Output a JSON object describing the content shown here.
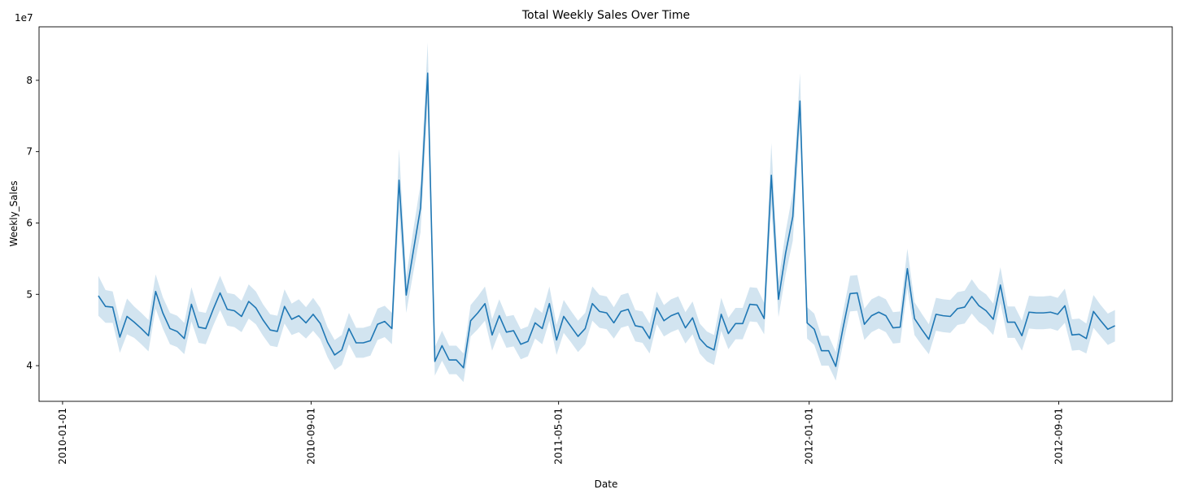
{
  "chart_data": {
    "type": "line",
    "title": "Total Weekly Sales Over Time",
    "xlabel": "Date",
    "ylabel": "Weekly_Sales",
    "y_scale_label": "1e7",
    "xlim": [
      "2009-12-09",
      "2012-12-21"
    ],
    "ylim": [
      3.5,
      8.75
    ],
    "y_ticks": [
      4,
      5,
      6,
      7,
      8
    ],
    "x_ticks": [
      "2010-01-01",
      "2010-09-01",
      "2011-05-01",
      "2012-01-01",
      "2012-09-01"
    ],
    "grid": false,
    "colors": {
      "line": "#1f77b4",
      "band": "#1f77b4"
    },
    "series": [
      {
        "x": [
          "2010-02-05",
          "2010-02-12",
          "2010-02-19",
          "2010-02-26",
          "2010-03-05",
          "2010-03-12",
          "2010-03-19",
          "2010-03-26",
          "2010-04-02",
          "2010-04-09",
          "2010-04-16",
          "2010-04-23",
          "2010-04-30",
          "2010-05-07",
          "2010-05-14",
          "2010-05-21",
          "2010-05-28",
          "2010-06-04",
          "2010-06-11",
          "2010-06-18",
          "2010-06-25",
          "2010-07-02",
          "2010-07-09",
          "2010-07-16",
          "2010-07-23",
          "2010-07-30",
          "2010-08-06",
          "2010-08-13",
          "2010-08-20",
          "2010-08-27",
          "2010-09-03",
          "2010-09-10",
          "2010-09-17",
          "2010-09-24",
          "2010-10-01",
          "2010-10-08",
          "2010-10-15",
          "2010-10-22",
          "2010-10-29",
          "2010-11-05",
          "2010-11-12",
          "2010-11-19",
          "2010-11-26",
          "2010-12-03",
          "2010-12-10",
          "2010-12-17",
          "2010-12-24",
          "2010-12-31",
          "2011-01-07",
          "2011-01-14",
          "2011-01-21",
          "2011-01-28",
          "2011-02-04",
          "2011-02-11",
          "2011-02-18",
          "2011-02-25",
          "2011-03-04",
          "2011-03-11",
          "2011-03-18",
          "2011-03-25",
          "2011-04-01",
          "2011-04-08",
          "2011-04-15",
          "2011-04-22",
          "2011-04-29",
          "2011-05-06",
          "2011-05-13",
          "2011-05-20",
          "2011-05-27",
          "2011-06-03",
          "2011-06-10",
          "2011-06-17",
          "2011-06-24",
          "2011-07-01",
          "2011-07-08",
          "2011-07-15",
          "2011-07-22",
          "2011-07-29",
          "2011-08-05",
          "2011-08-12",
          "2011-08-19",
          "2011-08-26",
          "2011-09-02",
          "2011-09-09",
          "2011-09-16",
          "2011-09-23",
          "2011-09-30",
          "2011-10-07",
          "2011-10-14",
          "2011-10-21",
          "2011-10-28",
          "2011-11-04",
          "2011-11-11",
          "2011-11-18",
          "2011-11-25",
          "2011-12-02",
          "2011-12-09",
          "2011-12-16",
          "2011-12-23",
          "2011-12-30",
          "2012-01-06",
          "2012-01-13",
          "2012-01-20",
          "2012-01-27",
          "2012-02-03",
          "2012-02-10",
          "2012-02-17",
          "2012-02-24",
          "2012-03-02",
          "2012-03-09",
          "2012-03-16",
          "2012-03-23",
          "2012-03-30",
          "2012-04-06",
          "2012-04-13",
          "2012-04-20",
          "2012-04-27",
          "2012-05-04",
          "2012-05-11",
          "2012-05-18",
          "2012-05-25",
          "2012-06-01",
          "2012-06-08",
          "2012-06-15",
          "2012-06-22",
          "2012-06-29",
          "2012-07-06",
          "2012-07-13",
          "2012-07-20",
          "2012-07-27",
          "2012-08-03",
          "2012-08-10",
          "2012-08-17",
          "2012-08-24",
          "2012-08-31",
          "2012-09-07",
          "2012-09-14",
          "2012-09-21",
          "2012-09-28",
          "2012-10-05",
          "2012-10-12",
          "2012-10-19",
          "2012-10-26"
        ],
        "values": [
          4.98,
          4.83,
          4.82,
          4.4,
          4.69,
          4.61,
          4.52,
          4.42,
          5.04,
          4.74,
          4.52,
          4.48,
          4.38,
          4.86,
          4.54,
          4.52,
          4.78,
          5.02,
          4.79,
          4.77,
          4.69,
          4.9,
          4.81,
          4.64,
          4.5,
          4.48,
          4.83,
          4.65,
          4.7,
          4.6,
          4.72,
          4.59,
          4.33,
          4.15,
          4.22,
          4.52,
          4.32,
          4.32,
          4.35,
          4.58,
          4.62,
          4.52,
          6.6,
          4.99,
          5.61,
          6.21,
          8.1,
          4.06,
          4.28,
          4.08,
          4.08,
          3.97,
          4.63,
          4.74,
          4.87,
          4.43,
          4.7,
          4.47,
          4.49,
          4.3,
          4.34,
          4.6,
          4.52,
          4.87,
          4.36,
          4.69,
          4.55,
          4.41,
          4.52,
          4.87,
          4.76,
          4.74,
          4.6,
          4.76,
          4.79,
          4.56,
          4.54,
          4.38,
          4.81,
          4.63,
          4.7,
          4.74,
          4.53,
          4.67,
          4.38,
          4.27,
          4.22,
          4.72,
          4.45,
          4.59,
          4.59,
          4.86,
          4.85,
          4.66,
          6.67,
          4.93,
          5.58,
          6.09,
          7.71,
          4.6,
          4.51,
          4.21,
          4.21,
          3.99,
          4.52,
          5.01,
          5.02,
          4.58,
          4.7,
          4.75,
          4.7,
          4.53,
          4.54,
          5.36,
          4.66,
          4.51,
          4.37,
          4.72,
          4.7,
          4.69,
          4.8,
          4.82,
          4.97,
          4.84,
          4.77,
          4.65,
          5.13,
          4.61,
          4.61,
          4.42,
          4.75,
          4.74,
          4.74,
          4.75,
          4.72,
          4.84,
          4.43,
          4.44,
          4.38,
          4.76,
          4.63,
          4.51,
          4.56
        ],
        "ci_halfwidth": [
          0.28,
          0.23,
          0.22,
          0.22,
          0.25,
          0.22,
          0.22,
          0.22,
          0.24,
          0.22,
          0.22,
          0.22,
          0.22,
          0.24,
          0.22,
          0.22,
          0.23,
          0.24,
          0.23,
          0.23,
          0.22,
          0.24,
          0.23,
          0.22,
          0.22,
          0.22,
          0.24,
          0.22,
          0.23,
          0.22,
          0.23,
          0.22,
          0.21,
          0.21,
          0.21,
          0.22,
          0.21,
          0.21,
          0.21,
          0.22,
          0.22,
          0.22,
          0.44,
          0.25,
          0.3,
          0.34,
          0.43,
          0.2,
          0.21,
          0.2,
          0.2,
          0.2,
          0.22,
          0.23,
          0.24,
          0.22,
          0.23,
          0.22,
          0.22,
          0.21,
          0.21,
          0.22,
          0.22,
          0.24,
          0.21,
          0.23,
          0.22,
          0.22,
          0.22,
          0.24,
          0.23,
          0.23,
          0.22,
          0.23,
          0.23,
          0.22,
          0.22,
          0.21,
          0.23,
          0.22,
          0.23,
          0.23,
          0.22,
          0.23,
          0.21,
          0.21,
          0.21,
          0.23,
          0.22,
          0.22,
          0.22,
          0.24,
          0.24,
          0.22,
          0.45,
          0.25,
          0.3,
          0.34,
          0.39,
          0.22,
          0.22,
          0.21,
          0.21,
          0.2,
          0.22,
          0.25,
          0.25,
          0.22,
          0.23,
          0.23,
          0.23,
          0.22,
          0.22,
          0.28,
          0.23,
          0.22,
          0.21,
          0.23,
          0.23,
          0.23,
          0.23,
          0.23,
          0.24,
          0.23,
          0.23,
          0.22,
          0.25,
          0.22,
          0.22,
          0.21,
          0.23,
          0.23,
          0.23,
          0.23,
          0.23,
          0.24,
          0.22,
          0.22,
          0.21,
          0.23,
          0.22,
          0.22,
          0.22
        ]
      }
    ]
  }
}
